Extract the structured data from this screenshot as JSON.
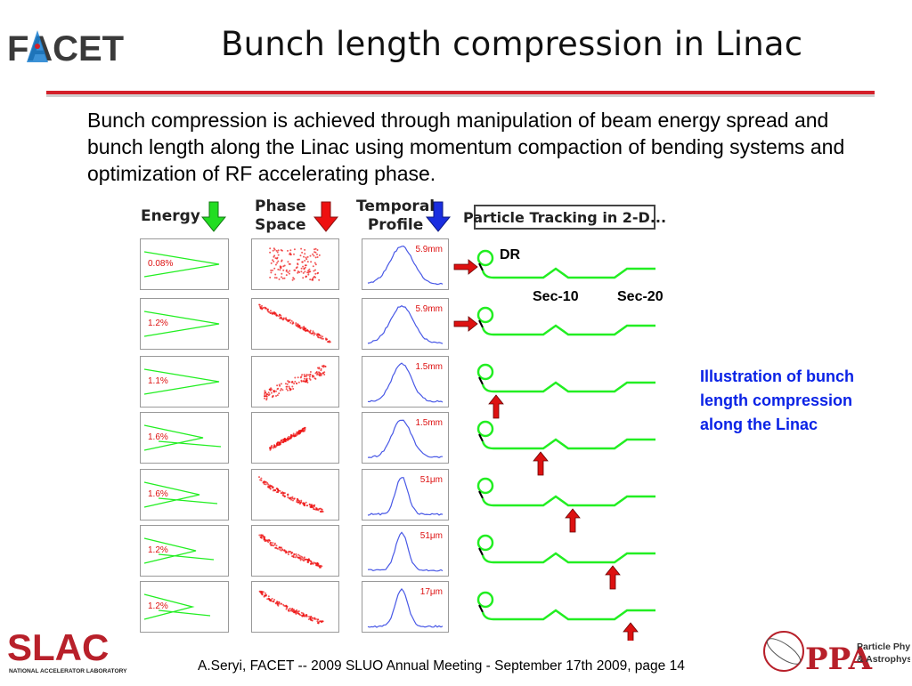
{
  "header": {
    "logo_text": "FACET",
    "title": "Bunch length compression in Linac"
  },
  "body_text": "Bunch compression is achieved through manipulation of beam energy spread and bunch length along the Linac using momentum compaction of bending systems and optimization of RF accelerating phase.",
  "columns": {
    "energy": "Energy",
    "phase_space_line1": "Phase",
    "phase_space_line2": "Space",
    "temporal_line1": "Temporal",
    "temporal_line2": "Profile"
  },
  "particle_tracking_label": "Particle Tracking in 2-D...",
  "colors": {
    "energy_arrow": "#22dd22",
    "phase_arrow": "#ee1111",
    "temporal_arrow": "#1a2ee0",
    "beamline": "#22ee22",
    "marker": "#dd1111",
    "illustration_text": "#0a22e6"
  },
  "energy_spreads": [
    "0.08%",
    "1.2%",
    "1.1%",
    "1.6%",
    "1.6%",
    "1.2%",
    "1.2%"
  ],
  "bunch_lengths": [
    "5.9mm",
    "5.9mm",
    "1.5mm",
    "1.5mm",
    "51μm",
    "51μm",
    "17μm"
  ],
  "beamline_labels": {
    "dr": "DR",
    "sec10": "Sec-10",
    "sec20": "Sec-20"
  },
  "illustration_caption": "Illustration of bunch length compression along the Linac",
  "footer": "A.Seryi, FACET  -- 2009 SLUO Annual Meeting - September 17th 2009, page 14",
  "logos": {
    "slac": "SLAC",
    "slac_sub": "NATIONAL ACCELERATOR LABORATORY",
    "ppa": "PPA",
    "ppa_sub1": "Particle Physics",
    "ppa_sub2": "& Astrophysics"
  }
}
